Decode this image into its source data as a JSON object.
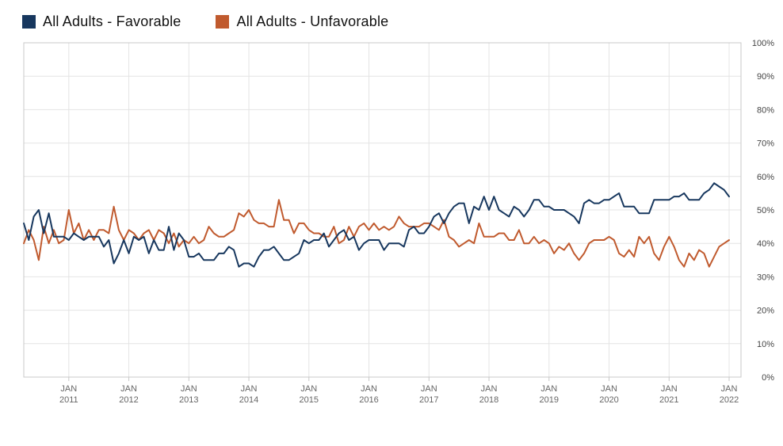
{
  "page": {
    "background": "#ffffff"
  },
  "legend": {
    "items": [
      {
        "label": "All Adults - Favorable",
        "color": "#17375e"
      },
      {
        "label": "All Adults - Unfavorable",
        "color": "#c05a2e"
      }
    ]
  },
  "chart_data": {
    "type": "line",
    "x_unit": "month",
    "x_start": "2010-04",
    "x_end": "2022-01",
    "grid": {
      "horizontal": true,
      "vertical": true,
      "color": "#e4e4e4",
      "border_color": "#c8c8c8"
    },
    "legend_position": "top-left",
    "y_axis": {
      "min": 0,
      "max": 100,
      "step": 10,
      "position": "right",
      "labels": [
        "0%",
        "10%",
        "20%",
        "30%",
        "40%",
        "50%",
        "60%",
        "70%",
        "80%",
        "90%",
        "100%"
      ]
    },
    "x_ticks": [
      {
        "index": 9,
        "line1": "JAN",
        "line2": "2011"
      },
      {
        "index": 21,
        "line1": "JAN",
        "line2": "2012"
      },
      {
        "index": 33,
        "line1": "JAN",
        "line2": "2013"
      },
      {
        "index": 45,
        "line1": "JAN",
        "line2": "2014"
      },
      {
        "index": 57,
        "line1": "JAN",
        "line2": "2015"
      },
      {
        "index": 69,
        "line1": "JAN",
        "line2": "2016"
      },
      {
        "index": 81,
        "line1": "JAN",
        "line2": "2017"
      },
      {
        "index": 93,
        "line1": "JAN",
        "line2": "2018"
      },
      {
        "index": 105,
        "line1": "JAN",
        "line2": "2019"
      },
      {
        "index": 117,
        "line1": "JAN",
        "line2": "2020"
      },
      {
        "index": 129,
        "line1": "JAN",
        "line2": "2021"
      },
      {
        "index": 141,
        "line1": "JAN",
        "line2": "2022"
      }
    ],
    "series": [
      {
        "name": "All Adults - Favorable",
        "color": "#17375e",
        "values": [
          46,
          41,
          48,
          50,
          43,
          49,
          42,
          42,
          42,
          41,
          43,
          42,
          41,
          42,
          42,
          42,
          39,
          41,
          34,
          37,
          41,
          37,
          42,
          41,
          42,
          37,
          41,
          38,
          38,
          45,
          38,
          43,
          41,
          36,
          36,
          37,
          35,
          35,
          35,
          37,
          37,
          39,
          38,
          33,
          34,
          34,
          33,
          36,
          38,
          38,
          39,
          37,
          35,
          35,
          36,
          37,
          41,
          40,
          41,
          41,
          43,
          39,
          41,
          43,
          44,
          41,
          42,
          38,
          40,
          41,
          41,
          41,
          38,
          40,
          40,
          40,
          39,
          44,
          45,
          43,
          43,
          45,
          48,
          49,
          46,
          49,
          51,
          52,
          52,
          46,
          51,
          50,
          54,
          50,
          54,
          50,
          49,
          48,
          51,
          50,
          48,
          50,
          53,
          53,
          51,
          51,
          50,
          50,
          50,
          49,
          48,
          46,
          52,
          53,
          52,
          52,
          53,
          53,
          54,
          55,
          51,
          51,
          51,
          49,
          49,
          49,
          53,
          53,
          53,
          53,
          54,
          54,
          55,
          53,
          53,
          53,
          55,
          56,
          58,
          57,
          56,
          54
        ]
      },
      {
        "name": "All Adults - Unfavorable",
        "color": "#c05a2e",
        "values": [
          40,
          44,
          41,
          35,
          45,
          40,
          44,
          40,
          41,
          50,
          43,
          46,
          41,
          44,
          41,
          44,
          44,
          43,
          51,
          44,
          41,
          44,
          43,
          41,
          43,
          44,
          41,
          44,
          43,
          40,
          43,
          39,
          41,
          40,
          42,
          40,
          41,
          45,
          43,
          42,
          42,
          43,
          44,
          49,
          48,
          50,
          47,
          46,
          46,
          45,
          45,
          53,
          47,
          47,
          43,
          46,
          46,
          44,
          43,
          43,
          42,
          42,
          45,
          40,
          41,
          45,
          42,
          45,
          46,
          44,
          46,
          44,
          45,
          44,
          45,
          48,
          46,
          45,
          45,
          45,
          46,
          46,
          45,
          44,
          47,
          42,
          41,
          39,
          40,
          41,
          40,
          46,
          42,
          42,
          42,
          43,
          43,
          41,
          41,
          44,
          40,
          40,
          42,
          40,
          41,
          40,
          37,
          39,
          38,
          40,
          37,
          35,
          37,
          40,
          41,
          41,
          41,
          42,
          41,
          37,
          36,
          38,
          36,
          42,
          40,
          42,
          37,
          35,
          39,
          42,
          39,
          35,
          33,
          37,
          35,
          38,
          37,
          33,
          36,
          39,
          40,
          41
        ]
      }
    ]
  }
}
